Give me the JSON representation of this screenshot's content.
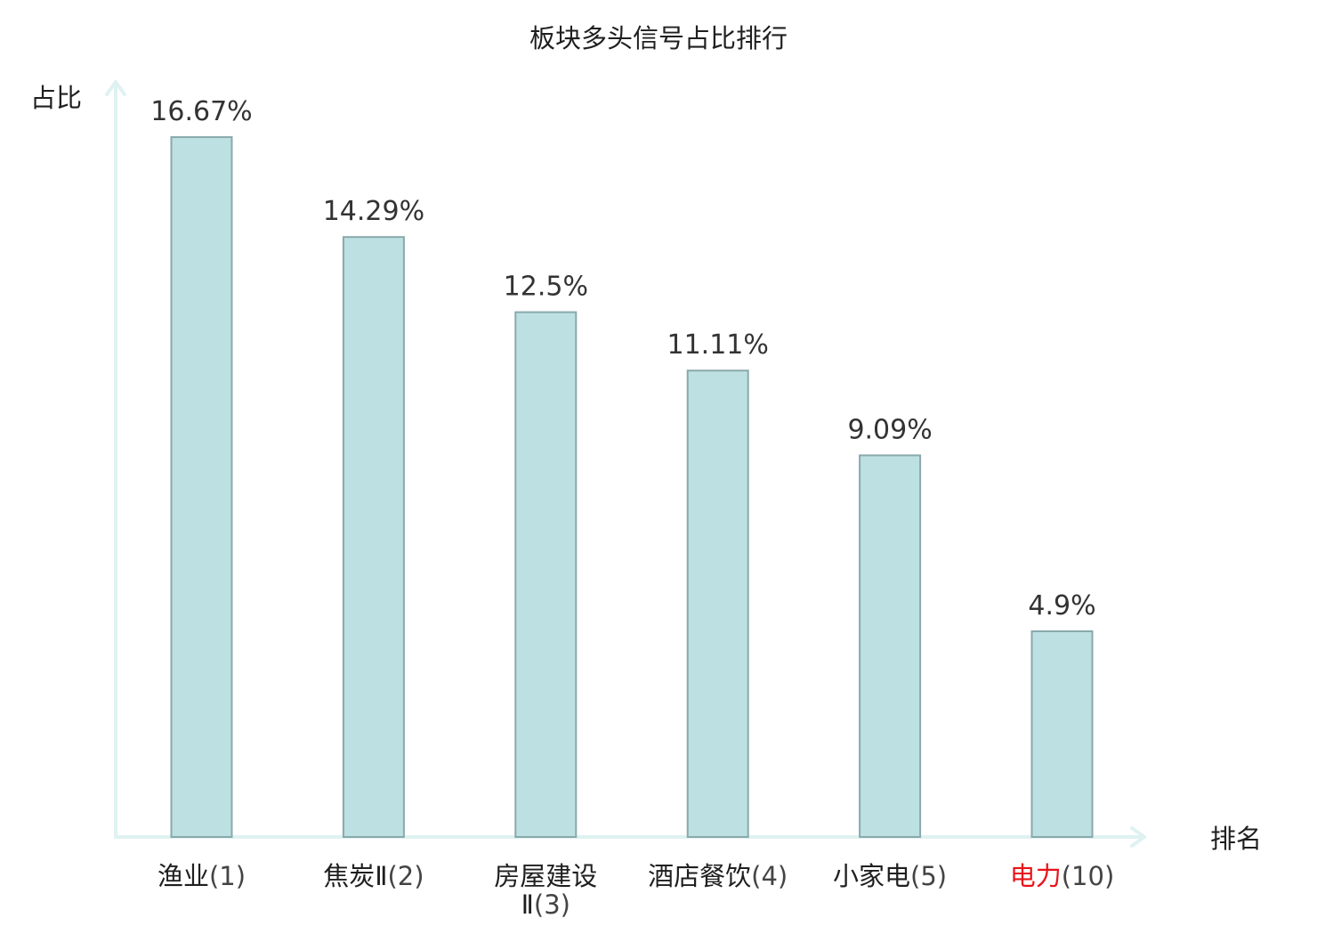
{
  "chart_data": {
    "type": "bar",
    "title": "板块多头信号占比排行",
    "ylabel": "占比",
    "xlabel": "排名",
    "categories": [
      {
        "name": "渔业",
        "name_line2": "",
        "rank": "(1)",
        "highlight": false
      },
      {
        "name": "焦炭Ⅱ",
        "name_line2": "",
        "rank": "(2)",
        "highlight": false
      },
      {
        "name": "房屋建设",
        "name_line2": "Ⅱ",
        "rank": "(3)",
        "highlight": false
      },
      {
        "name": "酒店餐饮",
        "name_line2": "",
        "rank": "(4)",
        "highlight": false
      },
      {
        "name": "小家电",
        "name_line2": "",
        "rank": "(5)",
        "highlight": false
      },
      {
        "name": "电力",
        "name_line2": "",
        "rank": "(10)",
        "highlight": true
      }
    ],
    "values": [
      16.67,
      14.29,
      12.5,
      11.11,
      9.09,
      4.9
    ],
    "value_labels": [
      "16.67%",
      "14.29%",
      "12.5%",
      "11.11%",
      "9.09%",
      "4.9%"
    ],
    "ylim": [
      0,
      18
    ],
    "grid": false,
    "colors": {
      "bar_fill": "#bde0e3",
      "bar_stroke": "#8aa9ab",
      "axis": "#dff2f1",
      "highlight": "#e8141b",
      "text": "#1f1f1f",
      "value_text": "#333333"
    }
  }
}
